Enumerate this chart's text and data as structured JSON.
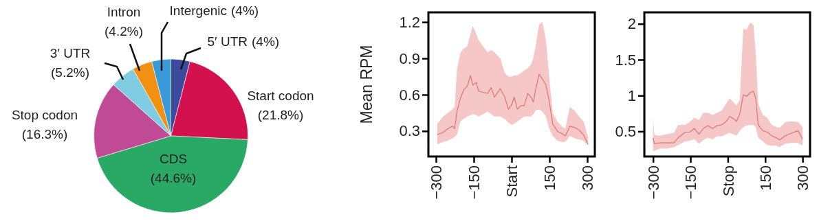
{
  "chart_data": [
    {
      "type": "pie",
      "categories": [
        "5′ UTR",
        "Start codon",
        "CDS",
        "Stop codon",
        "3′ UTR",
        "Intron",
        "Intergenic"
      ],
      "values": [
        4,
        21.8,
        44.6,
        16.3,
        5.2,
        4.2,
        4
      ],
      "colors": [
        "#3b4a9c",
        "#d4114f",
        "#2aa866",
        "#c04a95",
        "#80cde3",
        "#f29111",
        "#3a9ad9"
      ],
      "value_labels": [
        "(4%)",
        "(21.8%)",
        "(44.6%)",
        "(16.3%)",
        "(5.2%)",
        "(4.2%)",
        "(4%)"
      ]
    },
    {
      "type": "line",
      "ylabel": "Mean RPM",
      "x": [
        -295,
        -271,
        -253,
        -235,
        -226,
        -217,
        -203,
        -190,
        -176,
        -163,
        -154,
        -140,
        -131,
        -113,
        -95,
        -81,
        -68,
        -45,
        -27,
        -13,
        1,
        10,
        23,
        37,
        50,
        64,
        77,
        86,
        95,
        109,
        122,
        136,
        149,
        163,
        181,
        199,
        213,
        231,
        249,
        267,
        285,
        303
      ],
      "series": [
        {
          "color": "#e57373",
          "values": [
            0.27,
            0.29,
            0.32,
            0.34,
            0.32,
            0.46,
            0.57,
            0.64,
            0.67,
            0.76,
            0.68,
            0.7,
            0.63,
            0.62,
            0.61,
            0.66,
            0.58,
            0.65,
            0.58,
            0.48,
            0.52,
            0.58,
            0.48,
            0.51,
            0.51,
            0.61,
            0.58,
            0.54,
            0.64,
            0.77,
            0.73,
            0.68,
            0.55,
            0.36,
            0.3,
            0.28,
            0.26,
            0.34,
            0.33,
            0.31,
            0.27,
            0.19
          ],
          "lower": [
            0.19,
            0.21,
            0.22,
            0.24,
            0.25,
            0.27,
            0.38,
            0.4,
            0.42,
            0.43,
            0.44,
            0.43,
            0.42,
            0.44,
            0.46,
            0.44,
            0.42,
            0.42,
            0.4,
            0.37,
            0.35,
            0.36,
            0.38,
            0.4,
            0.42,
            0.42,
            0.42,
            0.44,
            0.47,
            0.48,
            0.46,
            0.42,
            0.32,
            0.26,
            0.22,
            0.21,
            0.21,
            0.26,
            0.24,
            0.23,
            0.22,
            0.18
          ],
          "upper": [
            0.36,
            0.42,
            0.45,
            0.48,
            0.5,
            0.8,
            0.95,
            0.98,
            1.0,
            1.1,
            1.17,
            1.1,
            1.05,
            1.0,
            0.95,
            0.97,
            0.95,
            0.9,
            0.78,
            0.75,
            0.75,
            0.76,
            0.76,
            0.78,
            0.8,
            0.82,
            0.85,
            0.9,
            1.0,
            1.18,
            1.2,
            1.05,
            0.75,
            0.45,
            0.38,
            0.34,
            0.32,
            0.5,
            0.47,
            0.42,
            0.38,
            0.25
          ]
        }
      ],
      "xlim": [
        -330,
        330
      ],
      "ylim": [
        0.09,
        1.28
      ],
      "xticks": [
        {
          "value": -300,
          "label": "−300"
        },
        {
          "value": -150,
          "label": "−150"
        },
        {
          "value": 0,
          "label": "Start"
        },
        {
          "value": 150,
          "label": "150"
        },
        {
          "value": 300,
          "label": "300"
        }
      ],
      "yticks": [
        0.3,
        0.6,
        0.9,
        1.2
      ]
    },
    {
      "type": "line",
      "x": [
        -300,
        -295,
        -272,
        -245,
        -217,
        -199,
        -171,
        -153,
        -134,
        -116,
        -98,
        -80,
        -61,
        -43,
        -25,
        -6,
        7,
        21,
        35,
        48,
        62,
        76,
        90,
        103,
        112,
        122,
        140,
        158,
        176,
        195,
        208,
        231,
        259,
        282,
        300
      ],
      "series": [
        {
          "color": "#e57373",
          "values": [
            0.41,
            0.33,
            0.34,
            0.34,
            0.34,
            0.41,
            0.49,
            0.49,
            0.54,
            0.46,
            0.54,
            0.58,
            0.54,
            0.58,
            0.59,
            0.64,
            0.71,
            0.68,
            0.64,
            0.74,
            1.01,
            0.99,
            1.04,
            1.06,
            0.96,
            0.59,
            0.51,
            0.49,
            0.44,
            0.41,
            0.38,
            0.44,
            0.48,
            0.51,
            0.39
          ],
          "lower": [
            0.23,
            0.23,
            0.26,
            0.26,
            0.28,
            0.31,
            0.36,
            0.37,
            0.39,
            0.33,
            0.38,
            0.41,
            0.39,
            0.43,
            0.43,
            0.46,
            0.48,
            0.46,
            0.44,
            0.51,
            0.56,
            0.58,
            0.59,
            0.59,
            0.56,
            0.41,
            0.36,
            0.31,
            0.3,
            0.3,
            0.28,
            0.33,
            0.34,
            0.34,
            0.3
          ],
          "upper": [
            0.69,
            0.45,
            0.44,
            0.46,
            0.48,
            0.59,
            0.59,
            0.63,
            0.69,
            0.66,
            0.76,
            0.76,
            0.73,
            0.76,
            0.79,
            0.89,
            0.96,
            0.91,
            0.86,
            0.94,
            1.93,
            1.92,
            2.02,
            1.98,
            1.6,
            0.89,
            0.73,
            0.69,
            0.59,
            0.56,
            0.55,
            0.63,
            0.64,
            0.63,
            0.56
          ]
        }
      ],
      "xlim": [
        -335,
        330
      ],
      "ylim": [
        0.15,
        2.16
      ],
      "xticks": [
        {
          "value": -300,
          "label": "−300"
        },
        {
          "value": -150,
          "label": "−150"
        },
        {
          "value": 0,
          "label": "Stop"
        },
        {
          "value": 150,
          "label": "150"
        },
        {
          "value": 300,
          "label": "300"
        }
      ],
      "yticks": [
        0.5,
        1,
        {
          "value": 1.5,
          "label": "1.5"
        },
        2
      ]
    }
  ]
}
